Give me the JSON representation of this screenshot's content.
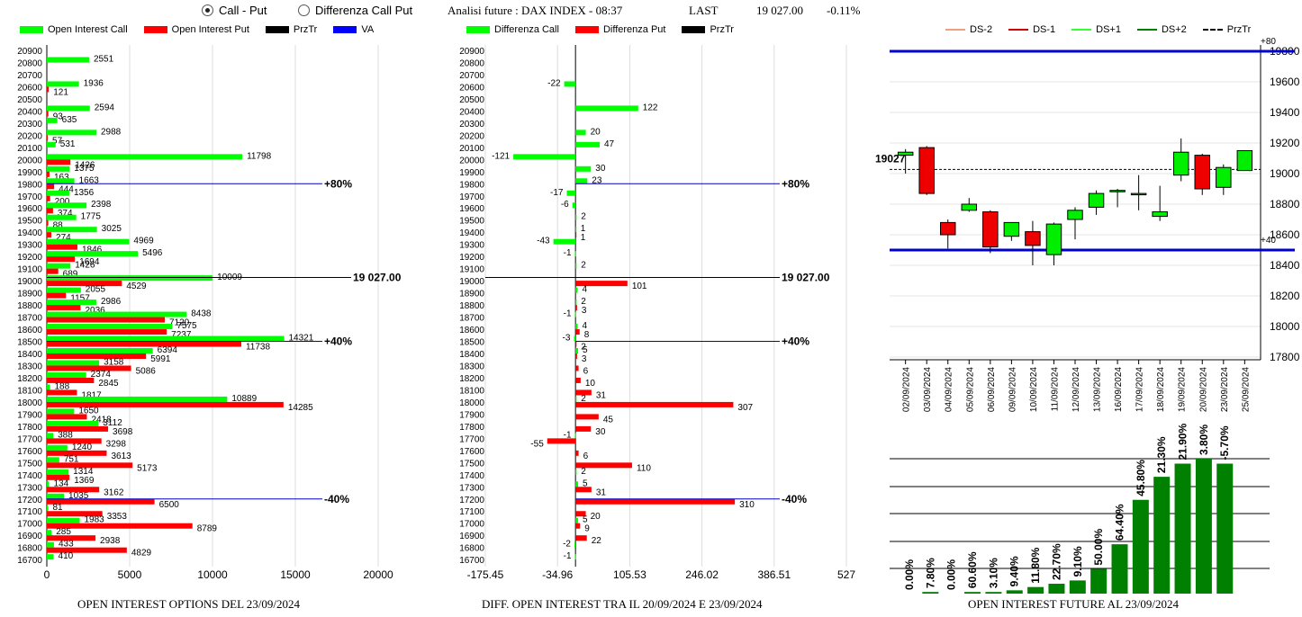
{
  "header": {
    "radio_call_put": "Call - Put",
    "radio_diff": "Differenza Call Put",
    "title": "Analisi future : DAX INDEX - 08:37",
    "last_label": "LAST",
    "last_value": "19 027.00",
    "change": "-0.11%"
  },
  "legend_left": [
    "Open Interest Call",
    "Open Interest Put",
    "PrzTr",
    "VA"
  ],
  "legend_mid": [
    "Differenza Call",
    "Differenza Put",
    "PrzTr"
  ],
  "legend_right": [
    "DS-2",
    "DS-1",
    "DS+1",
    "DS+2",
    "PrzTr"
  ],
  "captions": {
    "left": "OPEN INTEREST OPTIONS DEL 23/09/2024",
    "mid": "DIFF. OPEN INTEREST TRA IL 20/09/2024 E 23/09/2024",
    "right": "OPEN INTEREST FUTURE AL 23/09/2024"
  },
  "colors": {
    "call": "#00ff00",
    "put": "#ff0000",
    "przTr": "#000000",
    "va": "#0000cc",
    "up": "#00ee00",
    "down": "#ee0000",
    "bar": "#008000",
    "ds_minus2": "#f0a080",
    "ds_minus1": "#cc0000",
    "ds_plus1": "#33ff33",
    "ds_plus2": "#008000"
  },
  "chart_data": [
    {
      "type": "bar",
      "orientation": "horizontal",
      "caption": "OPEN INTEREST OPTIONS DEL 23/09/2024",
      "categories": [
        20900,
        20800,
        20700,
        20600,
        20500,
        20400,
        20300,
        20200,
        20100,
        20000,
        19900,
        19800,
        19700,
        19600,
        19500,
        19400,
        19300,
        19200,
        19100,
        19000,
        18900,
        18800,
        18700,
        18600,
        18500,
        18400,
        18300,
        18200,
        18100,
        18000,
        17900,
        17800,
        17700,
        17600,
        17500,
        17400,
        17300,
        17200,
        17100,
        17000,
        16900,
        16800,
        16700
      ],
      "series": [
        {
          "name": "Open Interest Call",
          "values": [
            null,
            2551,
            null,
            1936,
            null,
            2594,
            635,
            2988,
            531,
            11798,
            1375,
            1663,
            1356,
            2398,
            1775,
            3025,
            4969,
            5496,
            1426,
            10009,
            2055,
            2986,
            8438,
            7575,
            14321,
            6394,
            3158,
            2374,
            188,
            10889,
            1650,
            3112,
            388,
            1240,
            751,
            1314,
            134,
            1035,
            81,
            1983,
            285,
            433,
            410
          ]
        },
        {
          "name": "Open Interest Put",
          "values": [
            null,
            null,
            null,
            121,
            null,
            93,
            null,
            57,
            null,
            1426,
            163,
            444,
            200,
            374,
            88,
            274,
            1846,
            1694,
            689,
            4529,
            1157,
            2036,
            7120,
            7237,
            11738,
            5991,
            5086,
            2845,
            1817,
            14285,
            2418,
            3698,
            3298,
            3613,
            5173,
            1369,
            3162,
            6500,
            3353,
            8789,
            2938,
            4829,
            null
          ]
        }
      ],
      "xlim": [
        0,
        20000
      ],
      "xticks": [
        0,
        5000,
        10000,
        15000,
        20000
      ],
      "xtick_labels": [
        "0",
        "5000",
        "10000",
        "15000",
        "20000"
      ],
      "lines": [
        {
          "label": "+80%",
          "level": 19800,
          "end": 17000
        },
        {
          "label": "19 027.00",
          "level": 19027,
          "end": 21000
        },
        {
          "label": "+40%",
          "level": 18500,
          "end": 17000
        },
        {
          "label": "-40%",
          "level": 17200,
          "end": 17000
        }
      ]
    },
    {
      "type": "bar",
      "orientation": "horizontal",
      "caption": "DIFF. OPEN INTEREST TRA IL 20/09/2024 E 23/09/2024",
      "categories": [
        20900,
        20800,
        20700,
        20600,
        20500,
        20400,
        20300,
        20200,
        20100,
        20000,
        19900,
        19800,
        19700,
        19600,
        19500,
        19400,
        19300,
        19200,
        19100,
        19000,
        18900,
        18800,
        18700,
        18600,
        18500,
        18400,
        18300,
        18200,
        18100,
        18000,
        17900,
        17800,
        17700,
        17600,
        17500,
        17400,
        17300,
        17200,
        17100,
        17000,
        16900,
        16800,
        16700
      ],
      "series": [
        {
          "name": "Differenza Call",
          "values": [
            null,
            null,
            null,
            -22,
            null,
            122,
            null,
            20,
            47,
            -121,
            30,
            23,
            -17,
            -6,
            2,
            1,
            -43,
            -1,
            2,
            null,
            4,
            2,
            -1,
            4,
            -3,
            5,
            null,
            null,
            null,
            2,
            null,
            null,
            -1,
            null,
            null,
            2,
            5,
            null,
            null,
            5,
            null,
            -2,
            -1
          ]
        },
        {
          "name": "Differenza Put",
          "values": [
            null,
            null,
            null,
            null,
            null,
            null,
            null,
            null,
            null,
            null,
            null,
            null,
            null,
            null,
            null,
            1,
            null,
            null,
            null,
            101,
            null,
            3,
            null,
            8,
            2,
            3,
            6,
            10,
            31,
            307,
            45,
            30,
            -55,
            6,
            110,
            null,
            31,
            310,
            20,
            9,
            22,
            null,
            null
          ]
        }
      ],
      "xlim": [
        -175.45,
        527
      ],
      "xticks": [
        -175.45,
        -34.96,
        105.53,
        246.02,
        386.51,
        527
      ],
      "xtick_labels": [
        "-175.45",
        "-34.96",
        "105.53",
        "246.02",
        "386.51",
        "527"
      ],
      "lines": [
        {
          "label": "+80%",
          "level": 19800
        },
        {
          "label": "19 027.00",
          "level": 19027
        },
        {
          "label": "+40%",
          "level": 18500
        },
        {
          "label": "-40%",
          "level": 17200
        }
      ]
    },
    {
      "type": "candlestick",
      "dates": [
        "02/09/2024",
        "03/09/2024",
        "04/09/2024",
        "05/09/2024",
        "06/09/2024",
        "09/09/2024",
        "10/09/2024",
        "11/09/2024",
        "12/09/2024",
        "13/09/2024",
        "16/09/2024",
        "17/09/2024",
        "18/09/2024",
        "19/09/2024",
        "20/09/2024",
        "23/09/2024",
        "25/09/2024"
      ],
      "candles": [
        {
          "o": 19120,
          "c": 19140,
          "h": 19160,
          "l": 19000
        },
        {
          "o": 19170,
          "c": 18870,
          "h": 19180,
          "l": 18860
        },
        {
          "o": 18680,
          "c": 18600,
          "h": 18700,
          "l": 18510
        },
        {
          "o": 18760,
          "c": 18800,
          "h": 18840,
          "l": 18750
        },
        {
          "o": 18750,
          "c": 18520,
          "h": 18760,
          "l": 18480
        },
        {
          "o": 18590,
          "c": 18680,
          "h": 18680,
          "l": 18560
        },
        {
          "o": 18620,
          "c": 18530,
          "h": 18690,
          "l": 18400
        },
        {
          "o": 18470,
          "c": 18670,
          "h": 18680,
          "l": 18400
        },
        {
          "o": 18700,
          "c": 18760,
          "h": 18780,
          "l": 18570
        },
        {
          "o": 18780,
          "c": 18870,
          "h": 18890,
          "l": 18730
        },
        {
          "o": 18890,
          "c": 18890,
          "h": 18900,
          "l": 18780
        },
        {
          "o": 18870,
          "c": 18870,
          "h": 18990,
          "l": 18760
        },
        {
          "o": 18720,
          "c": 18750,
          "h": 18920,
          "l": 18690
        },
        {
          "o": 18990,
          "c": 19140,
          "h": 19230,
          "l": 18950
        },
        {
          "o": 19120,
          "c": 18900,
          "h": 19130,
          "l": 18860
        },
        {
          "o": 18910,
          "c": 19040,
          "h": 19060,
          "l": 18860
        },
        {
          "o": 19020,
          "c": 19150,
          "h": 19150,
          "l": 19020
        }
      ],
      "ylim": [
        17800,
        19850
      ],
      "yticks": [
        17800,
        18000,
        18200,
        18400,
        18600,
        18800,
        19000,
        19200,
        19400,
        19600,
        19800
      ],
      "levels": [
        {
          "label": "+80",
          "value": 19800
        },
        {
          "label": "+40",
          "value": 18500
        }
      ],
      "przTr": 19027,
      "przTr_label": "19027"
    },
    {
      "type": "bar",
      "caption": "OPEN INTEREST FUTURE AL 23/09/2024",
      "categories": [
        "02/09/2024",
        "03/09/2024",
        "04/09/2024",
        "05/09/2024",
        "06/09/2024",
        "09/09/2024",
        "10/09/2024",
        "11/09/2024",
        "12/09/2024",
        "13/09/2024",
        "16/09/2024",
        "17/09/2024",
        "18/09/2024",
        "19/09/2024",
        "20/09/2024",
        "23/09/2024"
      ],
      "value_labels": [
        "0.00%",
        "7.80%",
        "0.00%",
        "60.60%",
        "3.10%",
        "9.40%",
        "11.80%",
        "22.70%",
        "9.10%",
        "50.00%",
        "64.40%",
        "45.80%",
        "21.30%",
        "21.90%",
        "3.80%",
        "-5.70%"
      ],
      "values": [
        0,
        1,
        0,
        1,
        1,
        2,
        4,
        6,
        8,
        15,
        30,
        57,
        71,
        79,
        82,
        79
      ]
    }
  ]
}
